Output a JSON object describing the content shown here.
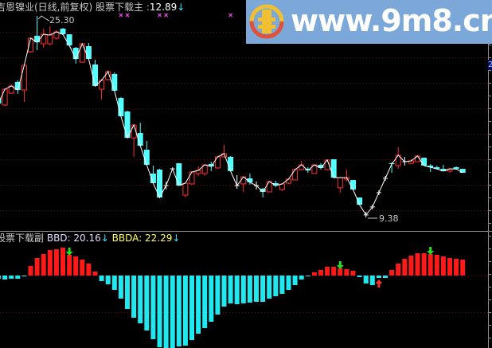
{
  "main_panel": {
    "stock_name": "吉恩镍业(日线,前复权)",
    "indicator_label": "股票下载主",
    "separator": ":",
    "value": "12.89",
    "arrow": "↓",
    "high_label": "25.30",
    "low_label": "9.38"
  },
  "sub_panel": {
    "indicator_label": "股票下载副",
    "bbd_label": "BBD:",
    "bbd_value": "20.16",
    "bbda_label": "BBDA:",
    "bbda_value": "22.29",
    "arrow": "↓"
  },
  "watermark": {
    "text": "www.9m8.cn"
  },
  "axis_tag": "2",
  "colors": {
    "up": "#ff3030",
    "down": "#54ffff",
    "doji": "#ffffff",
    "bar_positive": "#ff1a1a",
    "bar_negative": "#20e8f0",
    "signal_down": "#20e020",
    "signal_up": "#ff3030",
    "marker": "#e040e0",
    "grid": "#8a0000"
  },
  "chart_data": [
    {
      "type": "candlestick",
      "title": "吉恩镍业(日线,前复权)",
      "ylim": [
        9.0,
        25.6
      ],
      "high": 25.3,
      "low": 9.38,
      "ohlc": [
        [
          18.82,
          18.89,
          18.32,
          18.38
        ],
        [
          18.26,
          19.58,
          18.19,
          19.51
        ],
        [
          19.2,
          19.89,
          19.14,
          19.77
        ],
        [
          20.08,
          20.21,
          19.14,
          19.45
        ],
        [
          19.45,
          21.4,
          18.51,
          21.4
        ],
        [
          22.47,
          23.6,
          22.41,
          23.54
        ],
        [
          23.73,
          25.3,
          22.6,
          23.22
        ],
        [
          23.1,
          24.29,
          22.78,
          23.85
        ],
        [
          23.1,
          24.48,
          22.97,
          23.79
        ],
        [
          23.54,
          24.17,
          23.41,
          24.04
        ],
        [
          24.29,
          24.36,
          23.79,
          23.85
        ],
        [
          23.85,
          23.85,
          22.91,
          22.97
        ],
        [
          22.78,
          22.85,
          21.53,
          21.9
        ],
        [
          21.65,
          23.16,
          21.65,
          23.1
        ],
        [
          22.91,
          23.16,
          21.9,
          21.9
        ],
        [
          21.46,
          21.84,
          19.7,
          19.77
        ],
        [
          19.51,
          20.33,
          18.7,
          20.21
        ],
        [
          20.27,
          21.02,
          20.21,
          20.9
        ],
        [
          20.71,
          20.83,
          19.33,
          19.39
        ],
        [
          18.82,
          18.89,
          17.31,
          17.37
        ],
        [
          17.75,
          17.82,
          15.67,
          15.67
        ],
        [
          15.67,
          16.75,
          14.17,
          16.68
        ],
        [
          16.05,
          16.87,
          14.99,
          15.05
        ],
        [
          14.73,
          15.42,
          13.48,
          13.54
        ],
        [
          12.85,
          13.48,
          12.03,
          12.09
        ],
        [
          13.16,
          13.22,
          10.9,
          10.96
        ],
        [
          11.9,
          12.22,
          11.59,
          11.9
        ],
        [
          13.22,
          13.35,
          13.1,
          13.22
        ],
        [
          13.66,
          13.66,
          11.9,
          11.9
        ],
        [
          11.15,
          12.16,
          10.96,
          12.09
        ],
        [
          12.03,
          13.04,
          11.97,
          12.97
        ],
        [
          12.85,
          13.41,
          12.66,
          13.1
        ],
        [
          12.85,
          13.6,
          12.66,
          13.54
        ],
        [
          13.6,
          13.79,
          13.04,
          13.41
        ],
        [
          13.29,
          14.17,
          13.22,
          14.17
        ],
        [
          14.17,
          15.11,
          14.1,
          14.42
        ],
        [
          14.17,
          14.23,
          13.04,
          13.04
        ],
        [
          11.9,
          12.72,
          11.65,
          11.9
        ],
        [
          12.03,
          12.59,
          11.4,
          12.59
        ],
        [
          12.47,
          12.85,
          11.97,
          12.16
        ],
        [
          11.9,
          12.22,
          11.59,
          11.9
        ],
        [
          11.65,
          11.72,
          10.96,
          11.4
        ],
        [
          11.4,
          12.22,
          11.4,
          12.22
        ],
        [
          12.09,
          12.28,
          11.78,
          11.9
        ],
        [
          11.59,
          12.03,
          11.46,
          12.03
        ],
        [
          12.09,
          12.47,
          12.03,
          12.41
        ],
        [
          12.34,
          13.22,
          12.34,
          13.16
        ],
        [
          13.16,
          13.85,
          13.1,
          13.54
        ],
        [
          13.22,
          13.35,
          12.91,
          13.1
        ],
        [
          12.85,
          13.54,
          12.85,
          13.54
        ],
        [
          13.54,
          13.66,
          13.16,
          13.29
        ],
        [
          13.16,
          13.92,
          13.1,
          13.92
        ],
        [
          13.98,
          13.98,
          12.47,
          12.53
        ],
        [
          11.72,
          12.59,
          11.34,
          12.53
        ],
        [
          12.41,
          13.16,
          12.22,
          12.53
        ],
        [
          12.34,
          12.34,
          11.59,
          11.59
        ],
        [
          10.96,
          10.96,
          10.39,
          10.39
        ],
        [
          9.58,
          9.83,
          9.38,
          9.58
        ],
        [
          10.21,
          10.4,
          10.02,
          10.21
        ],
        [
          11.34,
          11.53,
          11.15,
          11.34
        ],
        [
          12.47,
          12.66,
          12.28,
          12.47
        ],
        [
          13.66,
          13.73,
          12.91,
          13.6
        ],
        [
          13.48,
          14.92,
          13.22,
          14.29
        ],
        [
          13.79,
          14.17,
          13.48,
          13.79
        ],
        [
          13.66,
          13.98,
          13.6,
          13.85
        ],
        [
          13.79,
          14.29,
          13.79,
          14.23
        ],
        [
          14.1,
          14.1,
          13.48,
          13.48
        ],
        [
          13.48,
          13.6,
          12.97,
          13.35
        ],
        [
          13.35,
          13.48,
          13.16,
          13.22
        ],
        [
          13.22,
          13.54,
          13.04,
          13.04
        ],
        [
          13.04,
          13.29,
          12.91,
          13.22
        ],
        [
          13.35,
          13.41,
          13.16,
          13.22
        ],
        [
          13.22,
          13.22,
          12.91,
          12.91
        ]
      ],
      "top_markers_at": [
        19,
        20,
        25,
        26,
        36
      ],
      "grid": true
    },
    {
      "type": "bar",
      "title": "股票下载副",
      "values": [
        -4,
        -5,
        -4,
        -4,
        -1,
        12,
        22,
        27,
        32,
        33,
        35,
        26,
        24,
        20,
        15,
        5,
        -7,
        -11,
        -18,
        -29,
        -42,
        -53,
        -60,
        -69,
        -80,
        -90,
        -91,
        -91,
        -89,
        -88,
        -81,
        -73,
        -66,
        -58,
        -49,
        -39,
        -35,
        -36,
        -35,
        -34,
        -33,
        -33,
        -29,
        -26,
        -23,
        -18,
        -12,
        -5,
        -1,
        4,
        7,
        11,
        11,
        9,
        8,
        6,
        -2,
        -10,
        -12,
        -3,
        -3,
        7,
        15,
        21,
        25,
        28,
        28,
        27,
        26,
        24,
        22,
        21,
        20
      ],
      "sell_signals_at": [
        11,
        53,
        67
      ],
      "buy_signals_at": [
        27,
        59
      ],
      "grid": true
    }
  ]
}
